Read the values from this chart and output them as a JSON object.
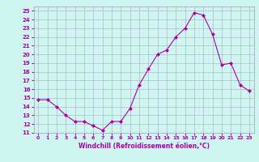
{
  "x": [
    0,
    1,
    2,
    3,
    4,
    5,
    6,
    7,
    8,
    9,
    10,
    11,
    12,
    13,
    14,
    15,
    16,
    17,
    18,
    19,
    20,
    21,
    22,
    23
  ],
  "y": [
    14.8,
    14.8,
    14.0,
    13.0,
    12.3,
    12.3,
    11.8,
    11.3,
    12.3,
    12.3,
    13.8,
    16.5,
    18.3,
    20.0,
    20.5,
    22.0,
    23.0,
    24.8,
    24.5,
    22.3,
    18.8,
    19.0,
    16.5,
    15.8
  ],
  "line_color": "#aa00aa",
  "marker": "D",
  "marker_size": 2,
  "xlim": [
    -0.5,
    23.5
  ],
  "ylim": [
    11,
    25.5
  ],
  "yticks": [
    11,
    12,
    13,
    14,
    15,
    16,
    17,
    18,
    19,
    20,
    21,
    22,
    23,
    24,
    25
  ],
  "xticks": [
    0,
    1,
    2,
    3,
    4,
    5,
    6,
    7,
    8,
    9,
    10,
    11,
    12,
    13,
    14,
    15,
    16,
    17,
    18,
    19,
    20,
    21,
    22,
    23
  ],
  "xlabel": "Windchill (Refroidissement éolien,°C)",
  "background_color": "#cff5f0",
  "grid_color": "#b0b8cc",
  "tick_color": "#aa00aa",
  "label_color": "#aa00aa"
}
